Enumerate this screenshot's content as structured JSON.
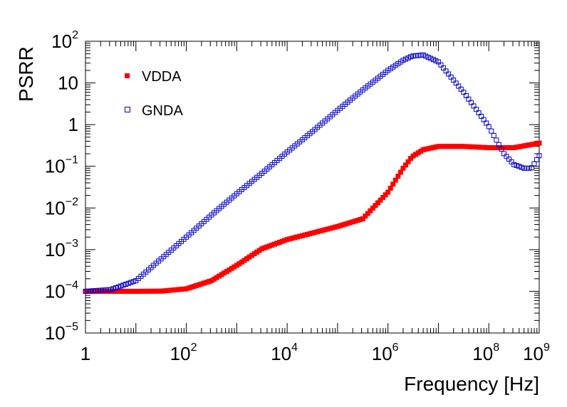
{
  "chart_data": {
    "type": "scatter",
    "xlabel": "Frequency [Hz]",
    "ylabel": "PSRR",
    "xscale": "log",
    "yscale": "log",
    "xlim": [
      1,
      1000000000
    ],
    "ylim": [
      1e-05,
      100
    ],
    "grid": false,
    "legend_position": "top-left",
    "x_tick_labels": [
      {
        "value": 1,
        "base": "1",
        "exp": ""
      },
      {
        "value": 100,
        "base": "10",
        "exp": "2"
      },
      {
        "value": 10000,
        "base": "10",
        "exp": "4"
      },
      {
        "value": 1000000,
        "base": "10",
        "exp": "6"
      },
      {
        "value": 100000000,
        "base": "10",
        "exp": "8"
      },
      {
        "value": 1000000000,
        "base": "10",
        "exp": "9"
      }
    ],
    "y_tick_labels": [
      {
        "value": 1e-05,
        "base": "10",
        "exp": "−5"
      },
      {
        "value": 0.0001,
        "base": "10",
        "exp": "−4"
      },
      {
        "value": 0.001,
        "base": "10",
        "exp": "−3"
      },
      {
        "value": 0.01,
        "base": "10",
        "exp": "−2"
      },
      {
        "value": 0.1,
        "base": "10",
        "exp": "−1"
      },
      {
        "value": 1,
        "base": "1",
        "exp": ""
      },
      {
        "value": 10,
        "base": "10",
        "exp": ""
      },
      {
        "value": 100,
        "base": "10",
        "exp": "2"
      }
    ],
    "series": [
      {
        "name": "VDDA",
        "marker": "filled-square",
        "color": "#ff0000",
        "x": [
          1,
          3.16,
          10,
          31.6,
          100,
          316,
          1000,
          3160,
          10000,
          31600,
          100000,
          316000,
          1000000,
          2000000,
          3000000,
          5000000,
          10000000,
          31600000,
          100000000,
          316000000,
          1000000000
        ],
        "y": [
          0.0001,
          0.0001,
          0.0001,
          0.000101,
          0.000115,
          0.00018,
          0.00042,
          0.00105,
          0.00175,
          0.0025,
          0.0036,
          0.0055,
          0.024,
          0.09,
          0.17,
          0.25,
          0.3,
          0.3,
          0.28,
          0.28,
          0.36
        ]
      },
      {
        "name": "GNDA",
        "marker": "open-square",
        "color": "#0000cc",
        "x": [
          1,
          3.16,
          10,
          31.6,
          100,
          316,
          1000,
          3160,
          10000,
          31600,
          100000,
          316000,
          1000000,
          2000000,
          3000000,
          5000000,
          10000000,
          31600000,
          100000000,
          200000000,
          316000000,
          500000000,
          700000000,
          1000000000
        ],
        "y": [
          0.0001,
          0.00011,
          0.00018,
          0.0006,
          0.002,
          0.0068,
          0.022,
          0.068,
          0.22,
          0.68,
          2.2,
          6.8,
          20,
          35,
          44,
          47,
          32,
          6,
          0.9,
          0.2,
          0.11,
          0.09,
          0.09,
          0.18
        ]
      }
    ]
  }
}
